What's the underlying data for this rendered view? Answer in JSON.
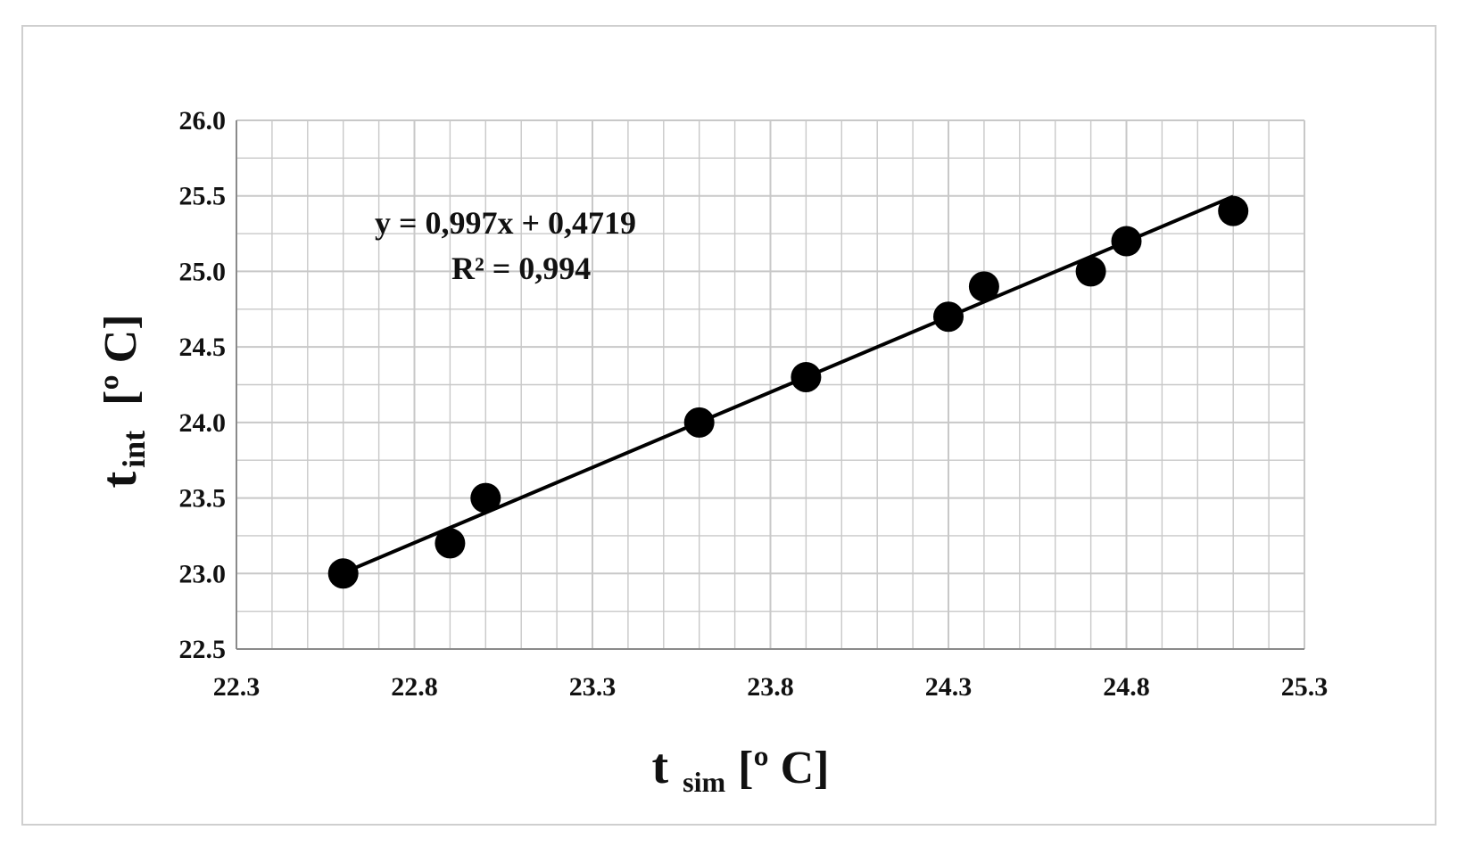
{
  "chart_data": {
    "type": "scatter",
    "x": [
      22.6,
      22.9,
      23.0,
      23.6,
      23.9,
      24.3,
      24.4,
      24.7,
      24.8,
      25.1
    ],
    "y": [
      23.0,
      23.2,
      23.5,
      24.0,
      24.3,
      24.7,
      24.9,
      25.0,
      25.2,
      25.4
    ],
    "xlim": [
      22.3,
      25.3
    ],
    "ylim": [
      22.5,
      26.0
    ],
    "xticks": [
      "22.3",
      "22.8",
      "23.3",
      "23.8",
      "24.3",
      "24.8",
      "25.3"
    ],
    "yticks": [
      "22.5",
      "23.0",
      "23.5",
      "24.0",
      "24.5",
      "25.0",
      "25.5",
      "26.0"
    ],
    "trendline": {
      "slope": 0.997,
      "intercept": 0.4719,
      "equation": "y = 0,997x + 0,4719",
      "r2": "R² = 0,994"
    },
    "xlabel": {
      "main": "t",
      "sub": "sim",
      "unit": "[º C]"
    },
    "ylabel": {
      "main": "t",
      "sub": "int",
      "unit": "[º C]"
    },
    "grid": true,
    "marker_color": "#000000",
    "line_color": "#000000",
    "grid_color": "#c8c8c8"
  }
}
